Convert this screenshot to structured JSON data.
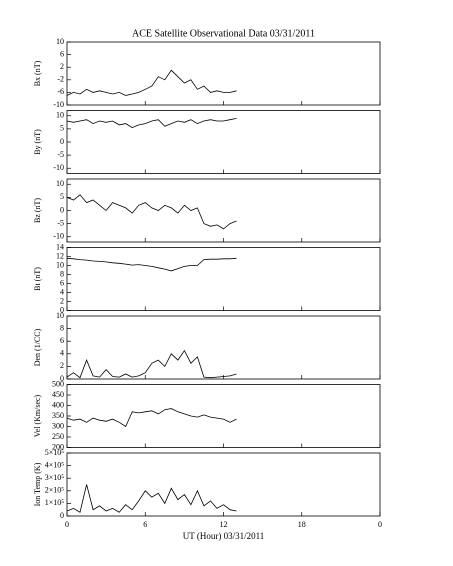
{
  "chart_data": [
    {
      "type": "line",
      "title": "ACE Satellite Observational Data   03/31/2011",
      "y_label": "Bx (nT)",
      "color": "#000000",
      "x": [
        0,
        0.5,
        1,
        1.5,
        2,
        2.5,
        3,
        3.5,
        4,
        4.5,
        5,
        5.5,
        6,
        6.5,
        7,
        7.5,
        8,
        8.5,
        9,
        9.5,
        10,
        10.5,
        11,
        11.5,
        12,
        12.5,
        13
      ],
      "values": [
        -7,
        -6,
        -6.5,
        -5,
        -6,
        -5.5,
        -6,
        -6.5,
        -6,
        -7,
        -6.5,
        -6,
        -5,
        -4,
        -1,
        -2,
        1,
        -1,
        -3,
        -2,
        -5,
        -4,
        -6,
        -5.5,
        -6,
        -6,
        -5.5
      ],
      "xlim": [
        0,
        24
      ],
      "xticks": [
        0,
        6,
        12,
        18,
        24
      ],
      "ylim": [
        -10,
        10
      ],
      "yticks": [
        -10,
        -6,
        -2,
        2,
        6,
        10
      ]
    },
    {
      "type": "line",
      "y_label": "By (nT)",
      "color": "#000000",
      "x": [
        0,
        0.5,
        1,
        1.5,
        2,
        2.5,
        3,
        3.5,
        4,
        4.5,
        5,
        5.5,
        6,
        6.5,
        7,
        7.5,
        8,
        8.5,
        9,
        9.5,
        10,
        10.5,
        11,
        11.5,
        12,
        12.5,
        13
      ],
      "values": [
        8,
        7.5,
        8,
        8.5,
        7,
        8,
        7.5,
        8,
        6.5,
        7,
        5.5,
        6.5,
        7,
        8,
        8.5,
        6,
        7,
        8,
        7.5,
        8.5,
        7,
        8,
        8.5,
        8,
        8,
        8.5,
        9
      ],
      "xlim": [
        0,
        24
      ],
      "xticks": [
        0,
        6,
        12,
        18,
        24
      ],
      "ylim": [
        -12,
        12
      ],
      "yticks": [
        -10,
        -5,
        0,
        5,
        10
      ]
    },
    {
      "type": "line",
      "y_label": "Bz (nT)",
      "color": "#000000",
      "x": [
        0,
        0.5,
        1,
        1.5,
        2,
        2.5,
        3,
        3.5,
        4,
        4.5,
        5,
        5.5,
        6,
        6.5,
        7,
        7.5,
        8,
        8.5,
        9,
        9.5,
        10,
        10.5,
        11,
        11.5,
        12,
        12.5,
        13
      ],
      "values": [
        5,
        4,
        6,
        3,
        4,
        2,
        0,
        3,
        2,
        1,
        -1,
        2,
        3,
        1,
        0,
        2,
        1,
        -1,
        2,
        0,
        1,
        -5,
        -6,
        -5.5,
        -7,
        -5,
        -4
      ],
      "xlim": [
        0,
        24
      ],
      "xticks": [
        0,
        6,
        12,
        18,
        24
      ],
      "ylim": [
        -12,
        12
      ],
      "yticks": [
        -10,
        -5,
        0,
        5,
        10
      ]
    },
    {
      "type": "line",
      "y_label": "Bt (nT)",
      "color": "#000000",
      "x": [
        0,
        0.5,
        1,
        1.5,
        2,
        2.5,
        3,
        3.5,
        4,
        4.5,
        5,
        5.5,
        6,
        6.5,
        7,
        7.5,
        8,
        8.5,
        9,
        9.5,
        10,
        10.5,
        11,
        11.5,
        12,
        12.5,
        13
      ],
      "values": [
        11.6,
        11.5,
        11.3,
        11.2,
        11,
        10.9,
        10.8,
        10.6,
        10.5,
        10.3,
        10.1,
        10.2,
        10,
        9.8,
        9.5,
        9.2,
        8.8,
        9.3,
        9.8,
        10,
        10,
        11.3,
        11.4,
        11.4,
        11.5,
        11.5,
        11.6
      ],
      "xlim": [
        0,
        24
      ],
      "xticks": [
        0,
        6,
        12,
        18,
        24
      ],
      "ylim": [
        0,
        14
      ],
      "yticks": [
        0,
        2,
        4,
        6,
        8,
        10,
        12,
        14
      ]
    },
    {
      "type": "line",
      "y_label": "Den (1/CC)",
      "color": "#000000",
      "x": [
        0,
        0.5,
        1,
        1.5,
        2,
        2.5,
        3,
        3.5,
        4,
        4.5,
        5,
        5.5,
        6,
        6.5,
        7,
        7.5,
        8,
        8.5,
        9,
        9.5,
        10,
        10.5,
        11,
        11.5,
        12,
        12.5,
        13
      ],
      "values": [
        0.3,
        1,
        0.2,
        3,
        0.5,
        0.3,
        1.5,
        0.4,
        0.3,
        0.8,
        0.3,
        0.5,
        1,
        2.5,
        3,
        2,
        4,
        3,
        4.5,
        2.5,
        3.5,
        0.3,
        0.2,
        0.3,
        0.4,
        0.5,
        0.8
      ],
      "xlim": [
        0,
        24
      ],
      "xticks": [
        0,
        6,
        12,
        18,
        24
      ],
      "ylim": [
        0,
        10
      ],
      "yticks": [
        0,
        2,
        4,
        6,
        8,
        10
      ]
    },
    {
      "type": "line",
      "y_label": "Vel (Km/sec)",
      "color": "#000000",
      "x": [
        0,
        0.5,
        1,
        1.5,
        2,
        2.5,
        3,
        3.5,
        4,
        4.5,
        5,
        5.5,
        6,
        6.5,
        7,
        7.5,
        8,
        8.5,
        9,
        9.5,
        10,
        10.5,
        11,
        11.5,
        12,
        12.5,
        13
      ],
      "values": [
        340,
        330,
        335,
        320,
        340,
        330,
        325,
        335,
        320,
        300,
        370,
        365,
        370,
        375,
        360,
        380,
        385,
        370,
        360,
        350,
        345,
        355,
        345,
        340,
        335,
        320,
        335
      ],
      "xlim": [
        0,
        24
      ],
      "xticks": [
        0,
        6,
        12,
        18,
        24
      ],
      "ylim": [
        200,
        500
      ],
      "yticks": [
        200,
        250,
        300,
        350,
        400,
        450,
        500
      ]
    },
    {
      "type": "line",
      "y_label": "Ion Temp (K)",
      "x_label": "UT (Hour)   03/31/2011",
      "color": "#000000",
      "x": [
        0,
        0.5,
        1,
        1.5,
        2,
        2.5,
        3,
        3.5,
        4,
        4.5,
        5,
        5.5,
        6,
        6.5,
        7,
        7.5,
        8,
        8.5,
        9,
        9.5,
        10,
        10.5,
        11,
        11.5,
        12,
        12.5,
        13
      ],
      "values": [
        40000,
        60000,
        30000,
        250000,
        50000,
        80000,
        40000,
        60000,
        30000,
        90000,
        50000,
        120000,
        200000,
        150000,
        180000,
        100000,
        220000,
        130000,
        170000,
        90000,
        200000,
        80000,
        120000,
        60000,
        90000,
        50000,
        40000
      ],
      "xlim": [
        0,
        24
      ],
      "xticks": [
        0,
        6,
        12,
        18,
        {
          "value": 24,
          "label": "0"
        }
      ],
      "ylim": [
        0,
        500000
      ],
      "yticks": [
        0,
        {
          "value": 100000,
          "label": "1×10⁵"
        },
        {
          "value": 200000,
          "label": "2×10⁵"
        },
        {
          "value": 300000,
          "label": "3×10⁵"
        },
        {
          "value": 400000,
          "label": "4×10⁵"
        },
        {
          "value": 500000,
          "label": "5×10⁵"
        }
      ]
    }
  ]
}
